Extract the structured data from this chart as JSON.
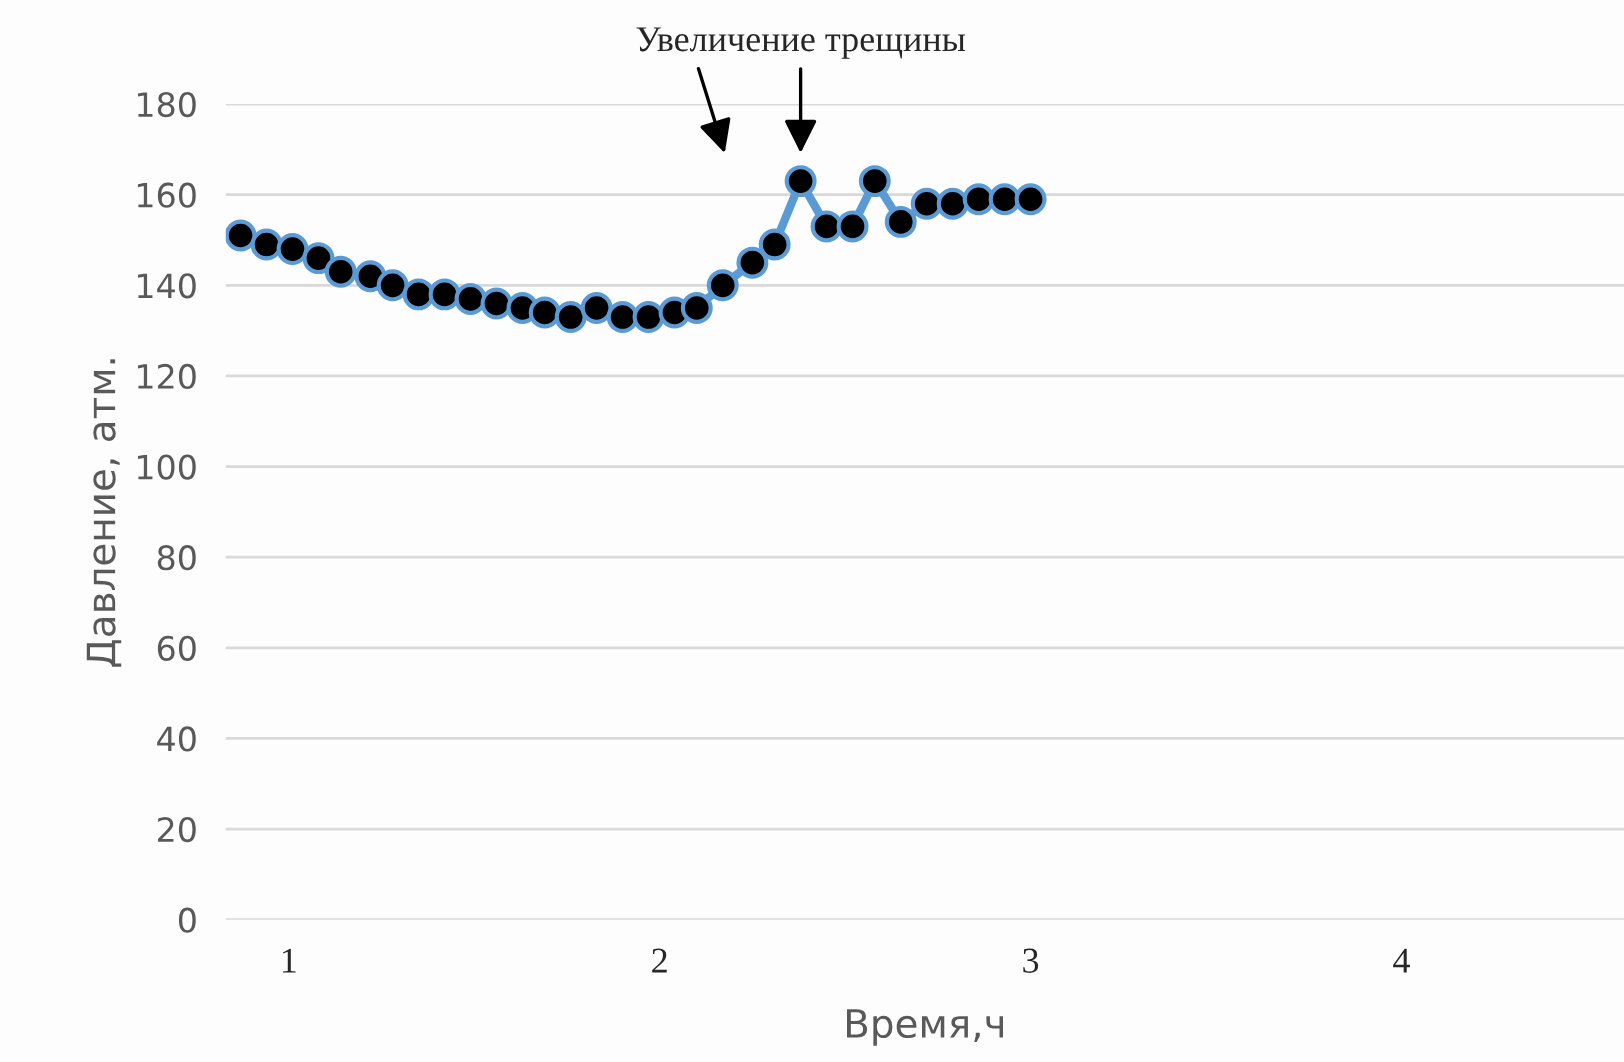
{
  "chart_data": {
    "type": "line",
    "xlabel": "Время,ч",
    "ylabel": "Давление, атм.",
    "x": [
      0.87,
      0.94,
      1.01,
      1.08,
      1.14,
      1.22,
      1.28,
      1.35,
      1.42,
      1.49,
      1.56,
      1.63,
      1.69,
      1.76,
      1.83,
      1.9,
      1.97,
      2.04,
      2.1,
      2.17,
      2.25,
      2.31,
      2.38,
      2.45,
      2.52,
      2.58,
      2.65,
      2.72,
      2.79,
      2.86,
      2.93,
      3.0
    ],
    "series": [
      {
        "color": "#5b9bd5",
        "values": [
          151,
          149,
          148,
          146,
          143,
          142,
          140,
          138,
          138,
          137,
          136,
          135,
          134,
          133,
          135,
          133,
          133,
          134,
          135,
          140,
          145,
          149,
          163,
          153,
          153,
          163,
          154,
          158,
          158,
          159,
          159,
          159
        ]
      }
    ],
    "marker": "circle",
    "line_style": "solid",
    "xlim": [
      0.83,
      4.6
    ],
    "xticks": [
      1,
      2,
      3,
      4
    ],
    "ylim": [
      0,
      180
    ],
    "yticks": [
      0,
      20,
      40,
      60,
      80,
      100,
      120,
      140,
      160,
      180
    ],
    "grid": "y",
    "annotations": [
      "Увеличение трещины"
    ]
  }
}
